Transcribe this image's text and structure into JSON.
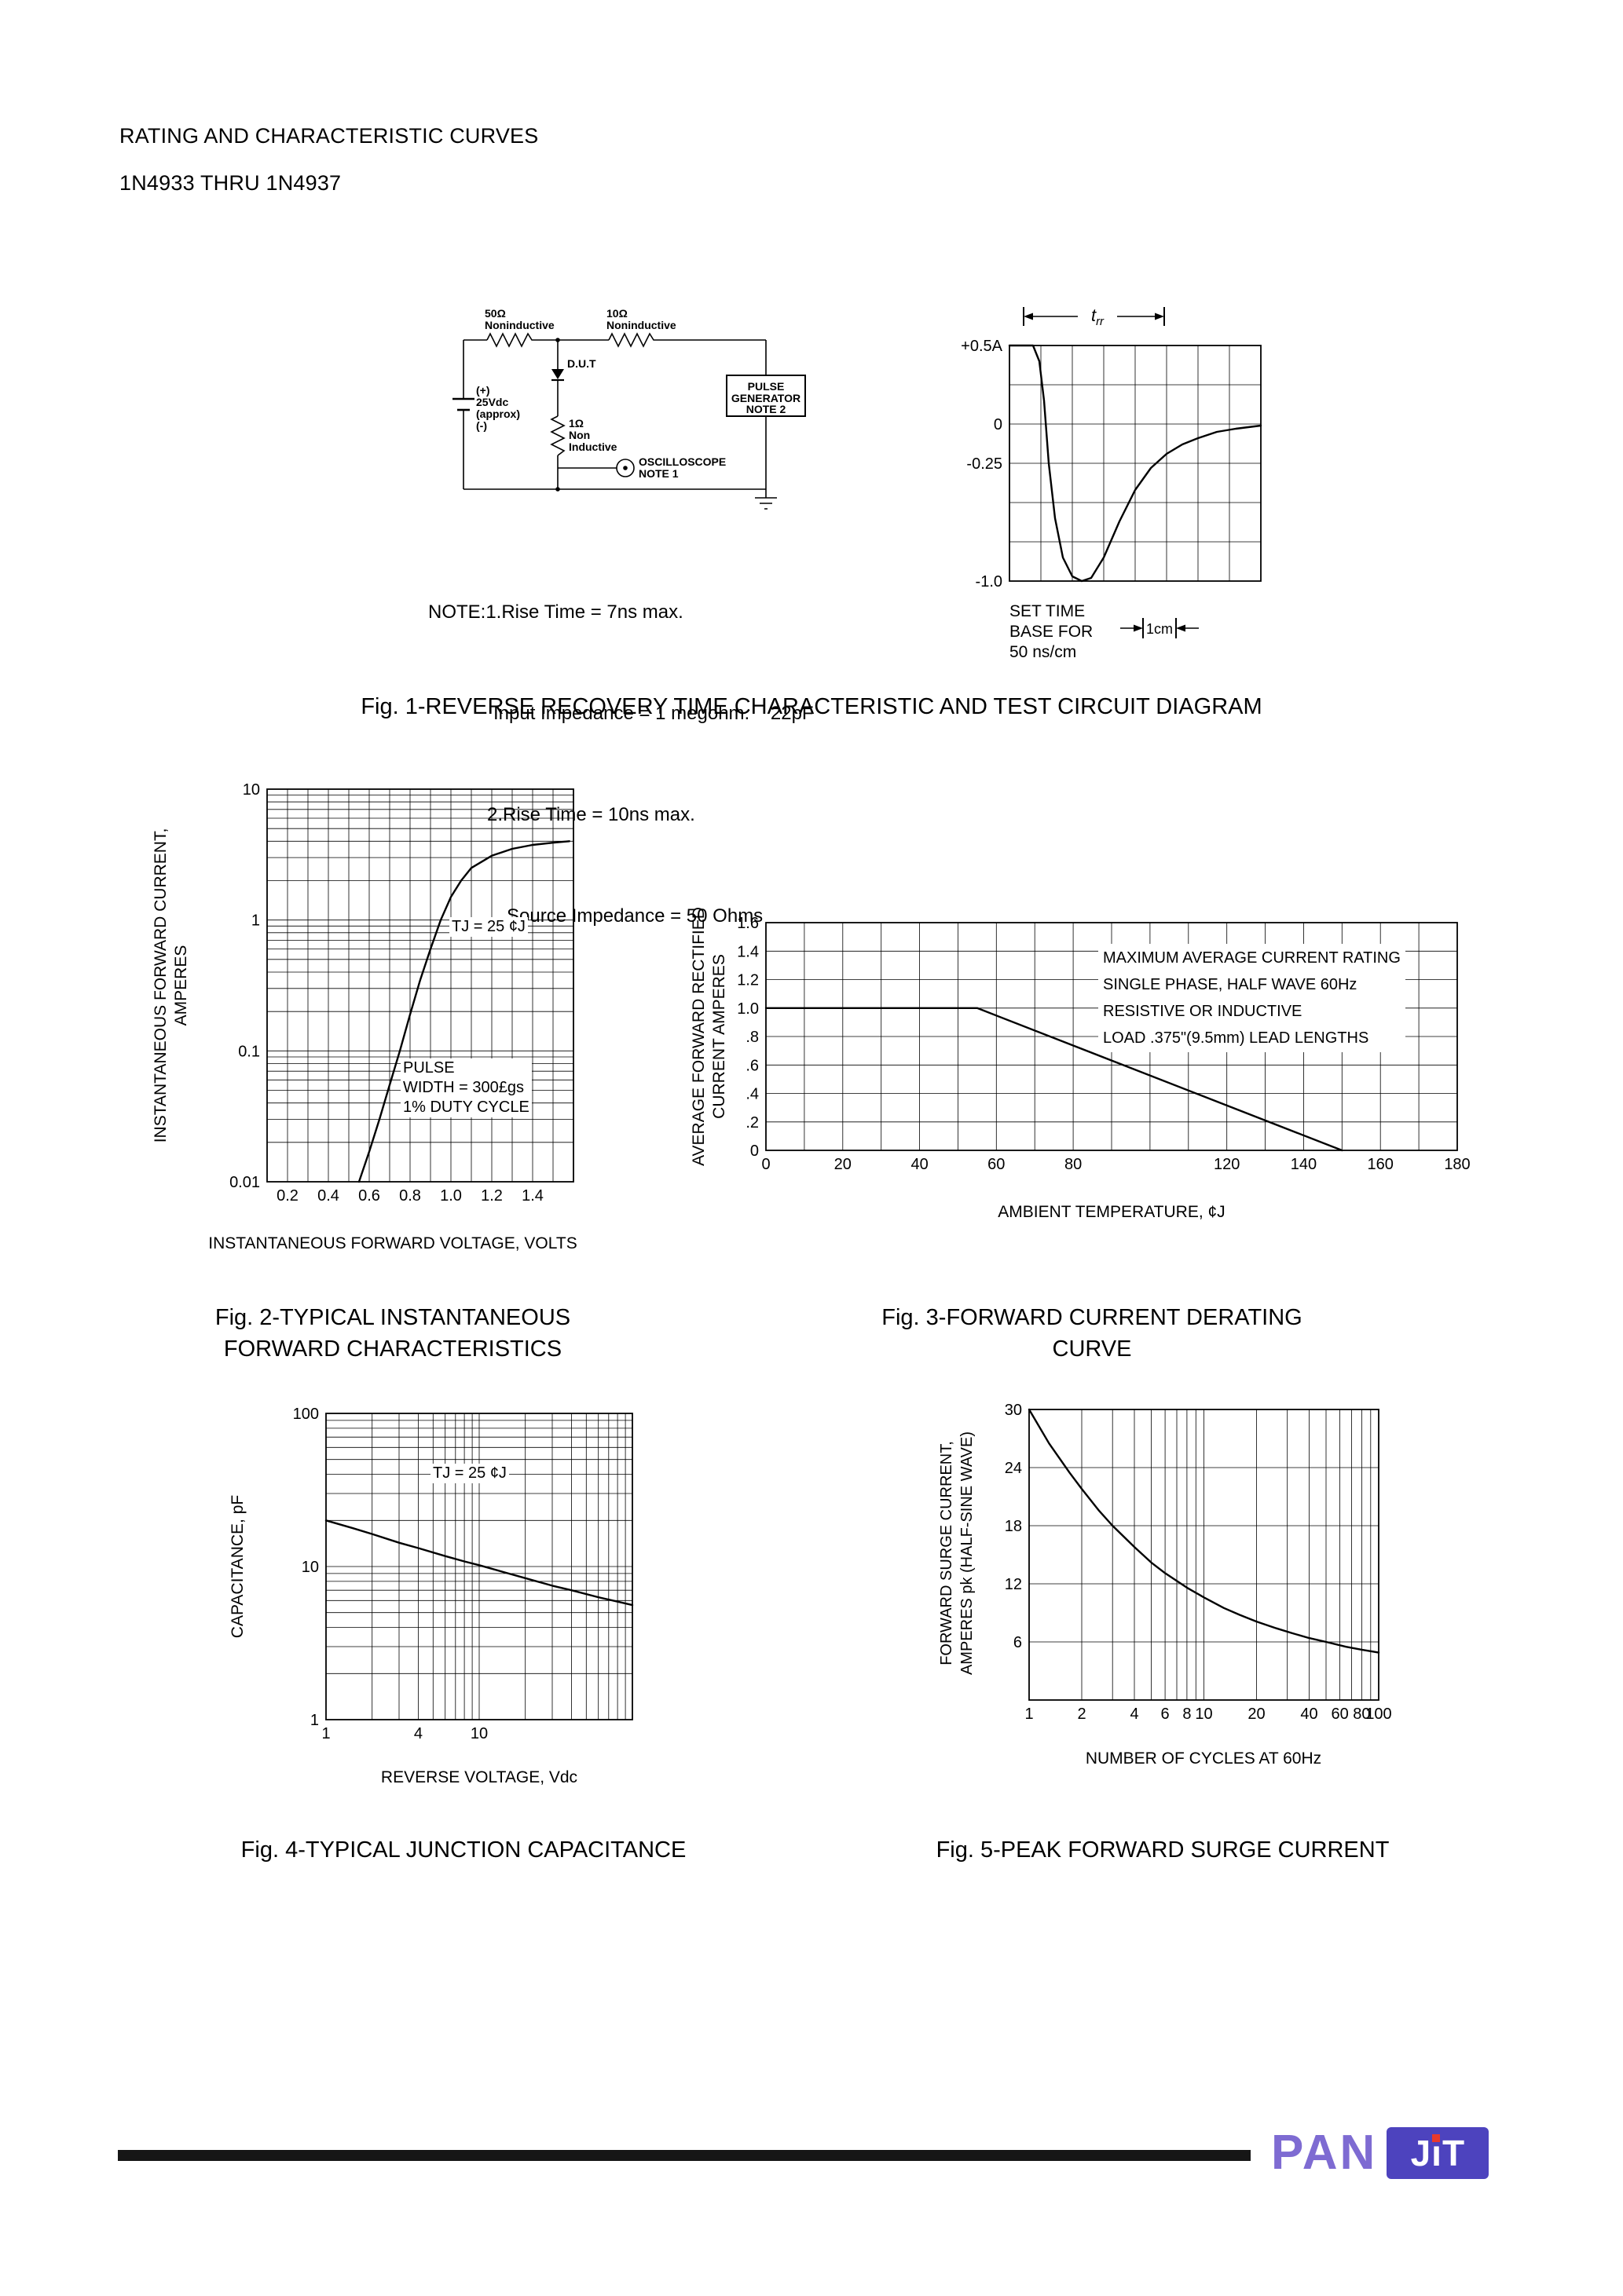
{
  "page": {
    "header_line1": "RATING AND CHARACTERISTIC CURVES",
    "header_line2": "1N4933 THRU 1N4937"
  },
  "fig1": {
    "caption": "Fig. 1-REVERSE RECOVERY TIME CHARACTERISTIC AND TEST CIRCUIT DIAGRAM",
    "circuit": {
      "r1_value": "50Ω",
      "r1_note": "Noninductive",
      "r2_value": "10Ω",
      "r2_note": "Noninductive",
      "bat_plus": "(+)",
      "bat_v": "25Vdc",
      "bat_approx": "(approx)",
      "bat_minus": "(-)",
      "dut": "D.U.T",
      "pg": [
        "PULSE",
        "GENERATOR",
        "NOTE 2"
      ],
      "r3": [
        "1Ω",
        "Non",
        "Inductive"
      ],
      "scope_label": [
        "OSCILLOSCOPE",
        "NOTE 1"
      ]
    },
    "notes": [
      "NOTE:1.Rise Time = 7ns max.",
      "Input Impedance = 1 megohm.    22pF",
      "2.Rise Time = 10ns max.",
      "Source Impedance = 50 Ohms"
    ],
    "scope": {
      "trr_t": "t",
      "trr_sub": "rr",
      "set": [
        "SET TIME",
        "BASE FOR",
        "50 ns/cm"
      ],
      "cm": "1cm"
    }
  },
  "logo": {
    "pan": "PAN",
    "jit": "JıT"
  },
  "chart_data": [
    {
      "id": "fig1scope",
      "type": "line",
      "xscale": "linear",
      "xlim": [
        0,
        8
      ],
      "xgridstep": 1,
      "yscale": "linear",
      "ylim": [
        -1,
        0.5
      ],
      "ygridstep": 0.25,
      "xticks": [],
      "yticks": [
        {
          "v": 0.5,
          "t": "+0.5A"
        },
        {
          "v": 0,
          "t": "0"
        },
        {
          "v": -0.25,
          "t": "-0.25"
        },
        {
          "v": -1,
          "t": "-1.0"
        }
      ],
      "series": [
        {
          "points": [
            [
              0,
              0.5
            ],
            [
              0.75,
              0.5
            ],
            [
              0.95,
              0.4
            ],
            [
              1.1,
              0.15
            ],
            [
              1.25,
              -0.25
            ],
            [
              1.45,
              -0.6
            ],
            [
              1.7,
              -0.85
            ],
            [
              2,
              -0.97
            ],
            [
              2.3,
              -1
            ],
            [
              2.6,
              -0.98
            ],
            [
              3,
              -0.85
            ],
            [
              3.5,
              -0.62
            ],
            [
              4,
              -0.42
            ],
            [
              4.5,
              -0.28
            ],
            [
              5,
              -0.19
            ],
            [
              5.5,
              -0.13
            ],
            [
              6,
              -0.09
            ],
            [
              6.6,
              -0.05
            ],
            [
              7.2,
              -0.03
            ],
            [
              8,
              -0.01
            ]
          ]
        }
      ]
    },
    {
      "id": "fig2",
      "type": "line",
      "title": "Fig. 2-TYPICAL INSTANTANEOUS\nFORWARD CHARACTERISTICS",
      "xlabel": "INSTANTANEOUS FORWARD VOLTAGE, VOLTS",
      "ylabel": "INSTANTANEOUS FORWARD CURRENT,\nAMPERES",
      "annotations": [
        "TJ = 25 ¢J",
        "PULSE\nWIDTH = 300£gs\n1% DUTY CYCLE"
      ],
      "xscale": "linear",
      "xlim": [
        0.1,
        1.6
      ],
      "xgridstep": 0.1,
      "yscale": "log",
      "ylim": [
        0.01,
        10
      ],
      "xticks": [
        {
          "v": 0.2,
          "t": "0.2"
        },
        {
          "v": 0.4,
          "t": "0.4"
        },
        {
          "v": 0.6,
          "t": "0.6"
        },
        {
          "v": 0.8,
          "t": "0.8"
        },
        {
          "v": 1,
          "t": "1.0"
        },
        {
          "v": 1.2,
          "t": "1.2"
        },
        {
          "v": 1.4,
          "t": "1.4"
        }
      ],
      "yticks": [
        {
          "v": 10,
          "t": "10"
        },
        {
          "v": 1,
          "t": "1"
        },
        {
          "v": 0.1,
          "t": "0.1"
        },
        {
          "v": 0.01,
          "t": "0.01"
        }
      ],
      "series": [
        {
          "points": [
            [
              0.55,
              0.01
            ],
            [
              0.6,
              0.017
            ],
            [
              0.65,
              0.03
            ],
            [
              0.7,
              0.055
            ],
            [
              0.75,
              0.1
            ],
            [
              0.8,
              0.19
            ],
            [
              0.85,
              0.35
            ],
            [
              0.9,
              0.6
            ],
            [
              0.95,
              1
            ],
            [
              1,
              1.5
            ],
            [
              1.05,
              2
            ],
            [
              1.1,
              2.5
            ],
            [
              1.2,
              3.1
            ],
            [
              1.3,
              3.5
            ],
            [
              1.4,
              3.75
            ],
            [
              1.5,
              3.9
            ],
            [
              1.58,
              4
            ]
          ]
        }
      ]
    },
    {
      "id": "fig3",
      "type": "line",
      "title": "Fig. 3-FORWARD CURRENT DERATING CURVE",
      "xlabel": "AMBIENT TEMPERATURE, ¢J",
      "ylabel": "AVERAGE FORWARD RECTIFIED\nCURRENT AMPERES",
      "legend": [
        "MAXIMUM AVERAGE CURRENT RATING",
        "SINGLE PHASE, HALF WAVE 60Hz",
        "RESISTIVE OR INDUCTIVE",
        "LOAD .375\"(9.5mm) LEAD LENGTHS"
      ],
      "xscale": "linear",
      "xlim": [
        0,
        180
      ],
      "xgridstep": 10,
      "yscale": "linear",
      "ylim": [
        0,
        1.6
      ],
      "ygridstep": 0.2,
      "xticks": [
        {
          "v": 0,
          "t": "0"
        },
        {
          "v": 20,
          "t": "20"
        },
        {
          "v": 40,
          "t": "40"
        },
        {
          "v": 60,
          "t": "60"
        },
        {
          "v": 80,
          "t": "80"
        },
        {
          "v": 120,
          "t": "120"
        },
        {
          "v": 140,
          "t": "140"
        },
        {
          "v": 160,
          "t": "160"
        },
        {
          "v": 180,
          "t": "180"
        }
      ],
      "yticks": [
        {
          "v": 1.6,
          "t": "1.6"
        },
        {
          "v": 1.4,
          "t": "1.4"
        },
        {
          "v": 1.2,
          "t": "1.2"
        },
        {
          "v": 1,
          "t": "1.0"
        },
        {
          "v": 0.8,
          "t": ".8"
        },
        {
          "v": 0.6,
          "t": ".6"
        },
        {
          "v": 0.4,
          "t": ".4"
        },
        {
          "v": 0.2,
          "t": ".2"
        },
        {
          "v": 0,
          "t": "0"
        }
      ],
      "series": [
        {
          "points": [
            [
              0,
              1
            ],
            [
              55,
              1
            ],
            [
              150,
              0
            ]
          ]
        }
      ]
    },
    {
      "id": "fig4",
      "type": "line",
      "title": "Fig. 4-TYPICAL JUNCTION CAPACITANCE",
      "xlabel": "REVERSE VOLTAGE, Vdc",
      "ylabel": "CAPACITANCE, pF",
      "annotations": [
        "TJ = 25  ¢J"
      ],
      "xscale": "log",
      "xlim": [
        1,
        100
      ],
      "yscale": "log",
      "ylim": [
        1,
        100
      ],
      "xticks": [
        {
          "v": 1,
          "t": "1"
        },
        {
          "v": 4,
          "t": "4"
        },
        {
          "v": 10,
          "t": "10"
        }
      ],
      "yticks": [
        {
          "v": 100,
          "t": "100"
        },
        {
          "v": 10,
          "t": "10"
        },
        {
          "v": 1,
          "t": "1"
        }
      ],
      "series": [
        {
          "points": [
            [
              1,
              20
            ],
            [
              1.5,
              17.8
            ],
            [
              2,
              16.3
            ],
            [
              3,
              14.3
            ],
            [
              4,
              13.2
            ],
            [
              6,
              11.7
            ],
            [
              8,
              10.8
            ],
            [
              10,
              10.2
            ],
            [
              15,
              9.1
            ],
            [
              20,
              8.4
            ],
            [
              30,
              7.5
            ],
            [
              40,
              7
            ],
            [
              60,
              6.3
            ],
            [
              80,
              5.9
            ],
            [
              100,
              5.6
            ]
          ]
        }
      ]
    },
    {
      "id": "fig5",
      "type": "line",
      "title": "Fig. 5-PEAK FORWARD SURGE CURRENT",
      "xlabel": "NUMBER OF CYCLES AT 60Hz",
      "ylabel": "FORWARD SURGE CURRENT,\nAMPERES pk (HALF-SINE WAVE)",
      "xscale": "log",
      "xlim": [
        1,
        100
      ],
      "yscale": "linear",
      "ylim": [
        0,
        30
      ],
      "ygridstep": 6,
      "xticks": [
        {
          "v": 1,
          "t": "1"
        },
        {
          "v": 2,
          "t": "2"
        },
        {
          "v": 4,
          "t": "4"
        },
        {
          "v": 6,
          "t": "6"
        },
        {
          "v": 8,
          "t": "8"
        },
        {
          "v": 10,
          "t": "10"
        },
        {
          "v": 20,
          "t": "20"
        },
        {
          "v": 40,
          "t": "40"
        },
        {
          "v": 60,
          "t": "60"
        },
        {
          "v": 80,
          "t": "80"
        },
        {
          "v": 100,
          "t": "100"
        }
      ],
      "yticks": [
        {
          "v": 30,
          "t": "30"
        },
        {
          "v": 24,
          "t": "24"
        },
        {
          "v": 18,
          "t": "18"
        },
        {
          "v": 12,
          "t": "12"
        },
        {
          "v": 6,
          "t": "6"
        }
      ],
      "series": [
        {
          "points": [
            [
              1,
              30
            ],
            [
              1.3,
              26.5
            ],
            [
              1.7,
              23.5
            ],
            [
              2,
              21.8
            ],
            [
              2.5,
              19.6
            ],
            [
              3,
              18
            ],
            [
              4,
              15.8
            ],
            [
              5,
              14.2
            ],
            [
              6,
              13.1
            ],
            [
              8,
              11.6
            ],
            [
              10,
              10.6
            ],
            [
              13,
              9.5
            ],
            [
              16,
              8.8
            ],
            [
              20,
              8.1
            ],
            [
              26,
              7.4
            ],
            [
              32,
              6.9
            ],
            [
              40,
              6.4
            ],
            [
              50,
              6
            ],
            [
              65,
              5.5
            ],
            [
              80,
              5.2
            ],
            [
              100,
              4.9
            ]
          ]
        }
      ]
    }
  ]
}
